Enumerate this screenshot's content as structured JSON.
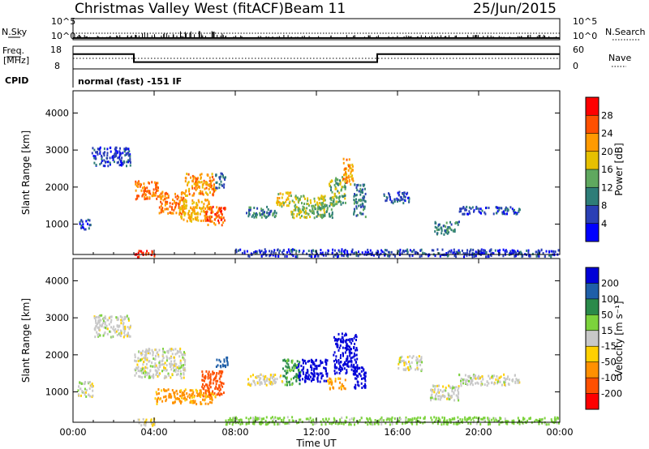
{
  "header": {
    "station": "Christmas Valley West (fitACF)",
    "beam": "Beam 11",
    "date": "25/Jun/2015"
  },
  "status_panel": {
    "nsky_label": "N.Sky",
    "nsearch_label": "N.Search",
    "freq_label_1": "Freq.",
    "freq_label_2": "[MHz]",
    "nave_label": "Nave",
    "cpid_label": "CPID",
    "cpid_text": "normal (fast) -151 IF",
    "noise_ticks": [
      "10^5",
      "10^0"
    ],
    "freq_ticks": [
      "18",
      "8"
    ],
    "nave_ticks": [
      "60",
      "0"
    ]
  },
  "colors": {
    "power": [
      "#0000ff",
      "#2a3fb5",
      "#2e7d78",
      "#5fa85f",
      "#e6c000",
      "#ff9a00",
      "#ff5000",
      "#ff0000"
    ],
    "velocity": [
      "#0000d8",
      "#1f5fa8",
      "#2a8a4a",
      "#7cd33c",
      "#c8c8c8",
      "#ffd000",
      "#ff9000",
      "#ff5000",
      "#ff0000"
    ]
  },
  "chart_data": [
    {
      "type": "line",
      "name": "noise-frequency-panel",
      "x_unit": "hours UT",
      "freq_mhz": {
        "x": [
          0,
          3.0,
          3.0,
          15.0,
          15.0,
          24
        ],
        "y": [
          14.5,
          14.5,
          11.0,
          11.0,
          14.5,
          14.5
        ]
      },
      "noise_sky_log10": {
        "x": [
          0,
          24
        ],
        "y": [
          0.4,
          0.4
        ]
      },
      "cpid": "normal (fast) -151 IF"
    },
    {
      "type": "heatmap",
      "name": "power",
      "x_label": "Time UT",
      "y_label": "Slant Range [km]",
      "x_ticks": [
        "00:00",
        "04:00",
        "08:00",
        "12:00",
        "16:00",
        "20:00",
        "00:00"
      ],
      "xlim": [
        0,
        24
      ],
      "y_ticks": [
        "1000",
        "2000",
        "3000",
        "4000"
      ],
      "ylim": [
        180,
        4600
      ],
      "colorbar_label": "Power [dB]",
      "colorbar_ticks": [
        "4",
        "8",
        "12",
        "16",
        "20",
        "24",
        "28"
      ],
      "colorbar_range": [
        0,
        32
      ],
      "regions": [
        {
          "t": [
            0.3,
            0.9
          ],
          "r": [
            880,
            1150
          ],
          "v": 6
        },
        {
          "t": [
            0.9,
            2.8
          ],
          "r": [
            2600,
            3100
          ],
          "v": 6
        },
        {
          "t": [
            3.0,
            4.0
          ],
          "r": [
            120,
            320
          ],
          "v": 29
        },
        {
          "t": [
            3.0,
            4.2
          ],
          "r": [
            1700,
            2200
          ],
          "v": 24
        },
        {
          "t": [
            4.2,
            5.5
          ],
          "r": [
            1300,
            1900
          ],
          "v": 24
        },
        {
          "t": [
            5.2,
            6.8
          ],
          "r": [
            1100,
            1700
          ],
          "v": 20
        },
        {
          "t": [
            5.5,
            7.0
          ],
          "r": [
            1800,
            2400
          ],
          "v": 22
        },
        {
          "t": [
            6.5,
            7.5
          ],
          "r": [
            1000,
            1500
          ],
          "v": 26
        },
        {
          "t": [
            7.0,
            7.5
          ],
          "r": [
            2000,
            2400
          ],
          "v": 8
        },
        {
          "t": [
            8.5,
            10.0
          ],
          "r": [
            1200,
            1500
          ],
          "v": 10
        },
        {
          "t": [
            10.0,
            10.7
          ],
          "r": [
            1500,
            1900
          ],
          "v": 18
        },
        {
          "t": [
            10.7,
            12.4
          ],
          "r": [
            1200,
            1800
          ],
          "v": 16
        },
        {
          "t": [
            11.8,
            12.8
          ],
          "r": [
            1200,
            1600
          ],
          "v": 12
        },
        {
          "t": [
            12.6,
            13.4
          ],
          "r": [
            1500,
            2300
          ],
          "v": 14
        },
        {
          "t": [
            13.2,
            13.8
          ],
          "r": [
            2100,
            2800
          ],
          "v": 22
        },
        {
          "t": [
            13.8,
            14.4
          ],
          "r": [
            1200,
            2100
          ],
          "v": 10
        },
        {
          "t": [
            15.3,
            16.6
          ],
          "r": [
            1600,
            1900
          ],
          "v": 6
        },
        {
          "t": [
            17.8,
            19.0
          ],
          "r": [
            750,
            1100
          ],
          "v": 10
        },
        {
          "t": [
            19.0,
            22.0
          ],
          "r": [
            1300,
            1500
          ],
          "v": 6
        },
        {
          "t": [
            8.0,
            24.0
          ],
          "r": [
            150,
            350
          ],
          "v": 5
        }
      ]
    },
    {
      "type": "heatmap",
      "name": "velocity",
      "x_label": "Time UT",
      "y_label": "Slant Range [km]",
      "x_ticks": [
        "00:00",
        "04:00",
        "08:00",
        "12:00",
        "16:00",
        "20:00",
        "00:00"
      ],
      "xlim": [
        0,
        24
      ],
      "y_ticks": [
        "1000",
        "2000",
        "3000",
        "4000"
      ],
      "ylim": [
        180,
        4600
      ],
      "colorbar_label": "Velocity [m s⁻¹]",
      "colorbar_ticks": [
        "200",
        "100",
        "50",
        "15",
        "-15",
        "-50",
        "-100",
        "-200"
      ],
      "regions": [
        {
          "t": [
            0.2,
            1.0
          ],
          "r": [
            900,
            1300
          ],
          "v": 0
        },
        {
          "t": [
            1.0,
            2.8
          ],
          "r": [
            2500,
            3100
          ],
          "v": 0
        },
        {
          "t": [
            3.0,
            4.0
          ],
          "r": [
            120,
            300
          ],
          "v": -10
        },
        {
          "t": [
            3.0,
            5.5
          ],
          "r": [
            1400,
            2200
          ],
          "v": 0
        },
        {
          "t": [
            4.0,
            7.0
          ],
          "r": [
            700,
            1100
          ],
          "v": -60
        },
        {
          "t": [
            6.3,
            7.4
          ],
          "r": [
            900,
            1600
          ],
          "v": -150
        },
        {
          "t": [
            7.0,
            7.6
          ],
          "r": [
            1700,
            2000
          ],
          "v": 150
        },
        {
          "t": [
            8.5,
            10.3
          ],
          "r": [
            1200,
            1500
          ],
          "v": -10
        },
        {
          "t": [
            10.3,
            11.2
          ],
          "r": [
            1200,
            1900
          ],
          "v": 60
        },
        {
          "t": [
            11.0,
            12.5
          ],
          "r": [
            1300,
            1900
          ],
          "v": 250
        },
        {
          "t": [
            12.5,
            13.4
          ],
          "r": [
            1100,
            1400
          ],
          "v": -60
        },
        {
          "t": [
            12.8,
            14.0
          ],
          "r": [
            1500,
            2600
          ],
          "v": 250
        },
        {
          "t": [
            13.8,
            14.4
          ],
          "r": [
            1100,
            1700
          ],
          "v": 220
        },
        {
          "t": [
            16.0,
            17.2
          ],
          "r": [
            1600,
            2000
          ],
          "v": 0
        },
        {
          "t": [
            17.5,
            19.0
          ],
          "r": [
            800,
            1200
          ],
          "v": 0
        },
        {
          "t": [
            19.0,
            22.0
          ],
          "r": [
            1200,
            1500
          ],
          "v": 0
        },
        {
          "t": [
            7.5,
            24.0
          ],
          "r": [
            150,
            350
          ],
          "v": 30
        }
      ]
    }
  ]
}
